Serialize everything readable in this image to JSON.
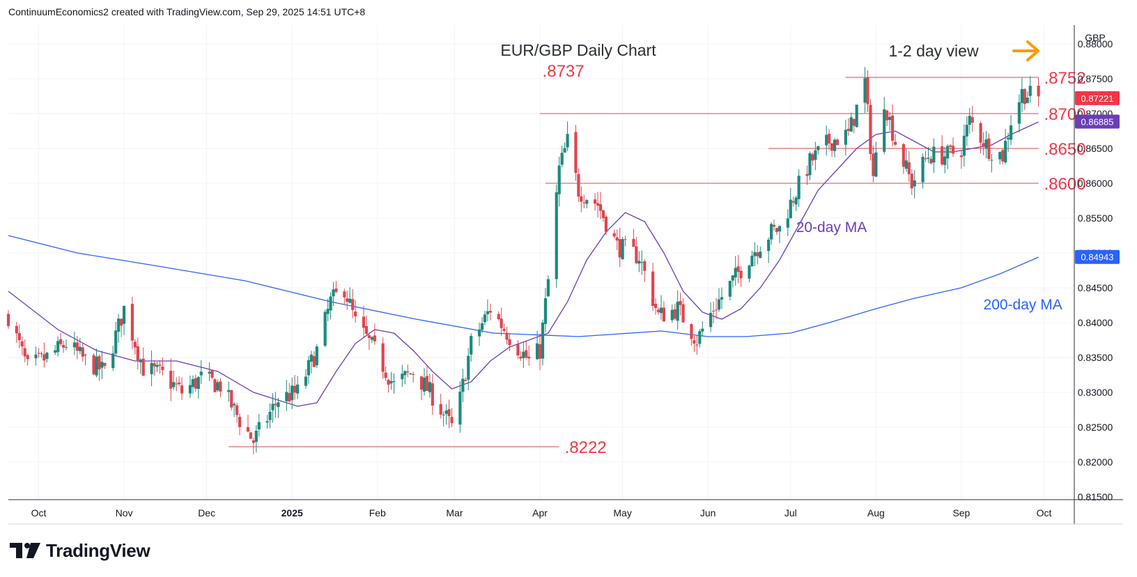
{
  "header": {
    "credit": "ContinuumEconomics2 created with TradingView.com, Sep 29, 2025 14:51 UTC+8"
  },
  "branding": {
    "logo_text": "TradingView"
  },
  "colors": {
    "up": "#1c8a7d",
    "down": "#e0454f",
    "level_line": "#e0454f",
    "ma20": "#6a3db8",
    "ma200": "#2962ff",
    "arrow": "#ff9800",
    "price_badge": "#f23645",
    "ma20_badge": "#6a3db8",
    "ma200_badge": "#2962ff"
  },
  "chart_data": {
    "type": "candlestick",
    "title": "EUR/GBP Daily Chart",
    "view_note": "1-2 day view",
    "view_arrow": "right-arrow-icon",
    "currency": "GBP",
    "ylim": [
      0.8146,
      0.8827
    ],
    "y_ticks": [
      "0.88000",
      "0.87500",
      "0.87000",
      "0.86500",
      "0.86000",
      "0.85500",
      "0.85000",
      "0.84500",
      "0.84000",
      "0.83500",
      "0.83000",
      "0.82500",
      "0.82000",
      "0.81500"
    ],
    "x_range": [
      "2024-09-20",
      "2025-10-12"
    ],
    "x_ticks": [
      {
        "label": "Oct",
        "date": "2024-10-01",
        "bold": false
      },
      {
        "label": "Nov",
        "date": "2024-11-01",
        "bold": false
      },
      {
        "label": "Dec",
        "date": "2024-12-01",
        "bold": false
      },
      {
        "label": "2025",
        "date": "2025-01-01",
        "bold": true
      },
      {
        "label": "Feb",
        "date": "2025-02-01",
        "bold": false
      },
      {
        "label": "Mar",
        "date": "2025-03-01",
        "bold": false
      },
      {
        "label": "Apr",
        "date": "2025-04-01",
        "bold": false
      },
      {
        "label": "May",
        "date": "2025-05-01",
        "bold": false
      },
      {
        "label": "Jun",
        "date": "2025-06-01",
        "bold": false
      },
      {
        "label": "Jul",
        "date": "2025-07-01",
        "bold": false
      },
      {
        "label": "Aug",
        "date": "2025-08-01",
        "bold": false
      },
      {
        "label": "Sep",
        "date": "2025-09-01",
        "bold": false
      },
      {
        "label": "Oct",
        "date": "2025-10-01",
        "bold": false
      }
    ],
    "close_path": [
      [
        "2024-09-20",
        0.841
      ],
      [
        "2024-09-27",
        0.8335
      ],
      [
        "2024-10-04",
        0.835
      ],
      [
        "2024-10-11",
        0.837
      ],
      [
        "2024-10-18",
        0.8345
      ],
      [
        "2024-10-25",
        0.833
      ],
      [
        "2024-11-01",
        0.842
      ],
      [
        "2024-11-08",
        0.8335
      ],
      [
        "2024-11-15",
        0.8325
      ],
      [
        "2024-11-22",
        0.83
      ],
      [
        "2024-11-29",
        0.832
      ],
      [
        "2024-12-06",
        0.831
      ],
      [
        "2024-12-13",
        0.826
      ],
      [
        "2024-12-18",
        0.823
      ],
      [
        "2024-12-27",
        0.829
      ],
      [
        "2025-01-03",
        0.83
      ],
      [
        "2025-01-10",
        0.836
      ],
      [
        "2025-01-15",
        0.843
      ],
      [
        "2025-01-20",
        0.845
      ],
      [
        "2025-01-24",
        0.84
      ],
      [
        "2025-01-31",
        0.836
      ],
      [
        "2025-02-07",
        0.831
      ],
      [
        "2025-02-14",
        0.833
      ],
      [
        "2025-02-21",
        0.8295
      ],
      [
        "2025-02-28",
        0.825
      ],
      [
        "2025-03-03",
        0.829
      ],
      [
        "2025-03-07",
        0.837
      ],
      [
        "2025-03-14",
        0.842
      ],
      [
        "2025-03-21",
        0.838
      ],
      [
        "2025-03-28",
        0.8345
      ],
      [
        "2025-04-01",
        0.836
      ],
      [
        "2025-04-04",
        0.846
      ],
      [
        "2025-04-08",
        0.862
      ],
      [
        "2025-04-11",
        0.866
      ],
      [
        "2025-04-15",
        0.859
      ],
      [
        "2025-04-22",
        0.857
      ],
      [
        "2025-04-29",
        0.851
      ],
      [
        "2025-05-07",
        0.8495
      ],
      [
        "2025-05-14",
        0.841
      ],
      [
        "2025-05-21",
        0.842
      ],
      [
        "2025-05-28",
        0.8375
      ],
      [
        "2025-06-03",
        0.842
      ],
      [
        "2025-06-10",
        0.846
      ],
      [
        "2025-06-17",
        0.85
      ],
      [
        "2025-06-24",
        0.853
      ],
      [
        "2025-06-27",
        0.8535
      ],
      [
        "2025-07-02",
        0.858
      ],
      [
        "2025-07-08",
        0.863
      ],
      [
        "2025-07-15",
        0.866
      ],
      [
        "2025-07-22",
        0.867
      ],
      [
        "2025-07-28",
        0.8745
      ],
      [
        "2025-07-31",
        0.861
      ],
      [
        "2025-08-04",
        0.872
      ],
      [
        "2025-08-08",
        0.866
      ],
      [
        "2025-08-14",
        0.86
      ],
      [
        "2025-08-20",
        0.864
      ],
      [
        "2025-08-27",
        0.864
      ],
      [
        "2025-09-01",
        0.865
      ],
      [
        "2025-09-04",
        0.869
      ],
      [
        "2025-09-11",
        0.865
      ],
      [
        "2025-09-16",
        0.864
      ],
      [
        "2025-09-19",
        0.869
      ],
      [
        "2025-09-23",
        0.873
      ],
      [
        "2025-09-29",
        0.8722
      ]
    ],
    "ma20": [
      [
        "2024-09-20",
        0.8445
      ],
      [
        "2024-10-08",
        0.839
      ],
      [
        "2024-10-22",
        0.836
      ],
      [
        "2024-11-05",
        0.8345
      ],
      [
        "2024-11-20",
        0.8345
      ],
      [
        "2024-12-05",
        0.833
      ],
      [
        "2024-12-18",
        0.83
      ],
      [
        "2025-01-03",
        0.828
      ],
      [
        "2025-01-10",
        0.8285
      ],
      [
        "2025-01-17",
        0.833
      ],
      [
        "2025-01-24",
        0.837
      ],
      [
        "2025-01-31",
        0.839
      ],
      [
        "2025-02-07",
        0.8385
      ],
      [
        "2025-02-14",
        0.836
      ],
      [
        "2025-02-21",
        0.833
      ],
      [
        "2025-02-28",
        0.8305
      ],
      [
        "2025-03-07",
        0.8315
      ],
      [
        "2025-03-14",
        0.8345
      ],
      [
        "2025-03-21",
        0.8365
      ],
      [
        "2025-03-28",
        0.8375
      ],
      [
        "2025-04-04",
        0.8385
      ],
      [
        "2025-04-11",
        0.843
      ],
      [
        "2025-04-18",
        0.849
      ],
      [
        "2025-04-25",
        0.853
      ],
      [
        "2025-05-02",
        0.8558
      ],
      [
        "2025-05-09",
        0.8545
      ],
      [
        "2025-05-16",
        0.85
      ],
      [
        "2025-05-23",
        0.8445
      ],
      [
        "2025-05-30",
        0.8415
      ],
      [
        "2025-06-06",
        0.8405
      ],
      [
        "2025-06-13",
        0.842
      ],
      [
        "2025-06-20",
        0.845
      ],
      [
        "2025-06-27",
        0.849
      ],
      [
        "2025-07-04",
        0.854
      ],
      [
        "2025-07-11",
        0.859
      ],
      [
        "2025-07-18",
        0.862
      ],
      [
        "2025-07-25",
        0.865
      ],
      [
        "2025-08-01",
        0.867
      ],
      [
        "2025-08-08",
        0.8675
      ],
      [
        "2025-08-15",
        0.866
      ],
      [
        "2025-08-22",
        0.8645
      ],
      [
        "2025-08-29",
        0.8645
      ],
      [
        "2025-09-05",
        0.865
      ],
      [
        "2025-09-12",
        0.8655
      ],
      [
        "2025-09-19",
        0.867
      ],
      [
        "2025-09-29",
        0.8688
      ]
    ],
    "ma200": [
      [
        "2024-09-20",
        0.8525
      ],
      [
        "2024-10-15",
        0.85
      ],
      [
        "2024-11-15",
        0.848
      ],
      [
        "2024-12-15",
        0.846
      ],
      [
        "2025-01-15",
        0.843
      ],
      [
        "2025-02-15",
        0.8405
      ],
      [
        "2025-03-15",
        0.8385
      ],
      [
        "2025-04-15",
        0.838
      ],
      [
        "2025-05-15",
        0.8388
      ],
      [
        "2025-06-01",
        0.838
      ],
      [
        "2025-06-15",
        0.838
      ],
      [
        "2025-07-01",
        0.8385
      ],
      [
        "2025-07-15",
        0.84
      ],
      [
        "2025-08-01",
        0.842
      ],
      [
        "2025-08-15",
        0.8435
      ],
      [
        "2025-09-01",
        0.845
      ],
      [
        "2025-09-15",
        0.847
      ],
      [
        "2025-09-29",
        0.8494
      ]
    ],
    "levels": [
      {
        "label": ".8752",
        "value": 0.8752,
        "from": "2025-07-21",
        "to": "2025-09-29",
        "label_date": "2025-10-01"
      },
      {
        "label": ".8700",
        "value": 0.87,
        "from": "2025-04-01",
        "to": "2025-09-29",
        "label_date": "2025-10-01"
      },
      {
        "label": ".8650",
        "value": 0.865,
        "from": "2025-06-23",
        "to": "2025-09-29",
        "label_date": "2025-10-01"
      },
      {
        "label": ".8600",
        "value": 0.86,
        "from": "2025-04-03",
        "to": "2025-09-29",
        "label_date": "2025-10-01"
      },
      {
        "label": ".8222",
        "value": 0.8222,
        "from": "2024-12-09",
        "to": "2025-04-08",
        "label_date": "2025-04-10"
      }
    ],
    "peak_label": {
      "label": ".8737",
      "value": 0.8737,
      "date": "2025-04-11"
    },
    "ma20_label": "20-day MA",
    "ma200_label": "200-day MA",
    "price_badges": [
      {
        "label": "0.87221",
        "value": 0.87221,
        "kind": "price"
      },
      {
        "label": "0.86885",
        "value": 0.86885,
        "kind": "ma20"
      },
      {
        "label": "0.84943",
        "value": 0.84943,
        "kind": "ma200"
      }
    ]
  }
}
